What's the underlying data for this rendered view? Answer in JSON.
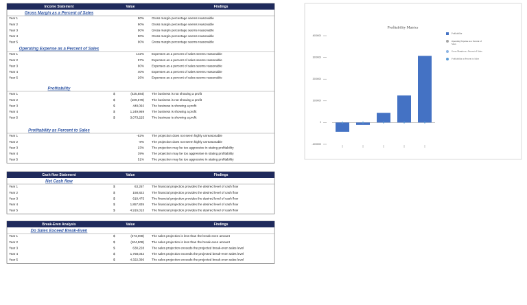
{
  "sections": [
    {
      "header": {
        "title": "Income Statement",
        "value": "Value",
        "findings": "Findings"
      },
      "groups": [
        {
          "title": "Gross Margin as a Percent of Sales",
          "rows": [
            {
              "label": "Year 1",
              "value": "90%",
              "finding": "Gross margin percentage seems reasonable"
            },
            {
              "label": "Year 2",
              "value": "90%",
              "finding": "Gross margin percentage seems reasonable"
            },
            {
              "label": "Year 3",
              "value": "90%",
              "finding": "Gross margin percentage seems reasonable"
            },
            {
              "label": "Year 4",
              "value": "90%",
              "finding": "Gross margin percentage seems reasonable"
            },
            {
              "label": "Year 5",
              "value": "90%",
              "finding": "Gross margin percentage seems reasonable"
            }
          ]
        },
        {
          "title": "Operating Expense as a Percent of Sales",
          "rows": [
            {
              "label": "Year 1",
              "value": "142%",
              "finding": "Expenses as a percent of sales seems reasonable"
            },
            {
              "label": "Year 2",
              "value": "97%",
              "finding": "Expenses as a percent of sales seems reasonable"
            },
            {
              "label": "Year 3",
              "value": "60%",
              "finding": "Expenses as a percent of sales seems reasonable"
            },
            {
              "label": "Year 4",
              "value": "40%",
              "finding": "Expenses as a percent of sales seems reasonable"
            },
            {
              "label": "Year 5",
              "value": "26%",
              "finding": "Expenses as a percent of sales seems reasonable"
            }
          ]
        },
        {
          "title": "Profitability",
          "rows": [
            {
              "label": "Year 1",
              "cur": "$",
              "value": "(425,884)",
              "finding": "The business is not showing a profit"
            },
            {
              "label": "Year 2",
              "cur": "$",
              "value": "(109,678)",
              "finding": "The business is not showing a profit"
            },
            {
              "label": "Year 3",
              "cur": "$",
              "value": "448,092",
              "finding": "The business is showing a profit"
            },
            {
              "label": "Year 4",
              "cur": "$",
              "value": "1,249,969",
              "finding": "The business is showing a profit"
            },
            {
              "label": "Year 5",
              "cur": "$",
              "value": "3,073,225",
              "finding": "The business is showing a profit"
            }
          ]
        },
        {
          "title": "Profitability as Percent to Sales",
          "rows": [
            {
              "label": "Year 1",
              "value": "-52%",
              "finding": "The projection does not seem highly unreasonable"
            },
            {
              "label": "Year 2",
              "value": "-8%",
              "finding": "The projection does not seem highly unreasonable"
            },
            {
              "label": "Year 3",
              "value": "23%",
              "finding": "The projection may be too aggressive in stating profitability"
            },
            {
              "label": "Year 4",
              "value": "39%",
              "finding": "The projection may be too aggressive in stating profitability"
            },
            {
              "label": "Year 5",
              "value": "51%",
              "finding": "The projection may be too aggressive in stating profitability"
            }
          ]
        }
      ]
    },
    {
      "header": {
        "title": "Cash flow Statement",
        "value": "Value",
        "findings": "Findings"
      },
      "groups": [
        {
          "title": "Net Cash flow",
          "rows": [
            {
              "label": "Year 1",
              "cur": "$",
              "value": "63,257",
              "finding": "The financial projection provides the desired level of cash flow"
            },
            {
              "label": "Year 2",
              "cur": "$",
              "value": "158,822",
              "finding": "The financial projection provides the desired level of cash flow"
            },
            {
              "label": "Year 3",
              "cur": "$",
              "value": "610,475",
              "finding": "The financial projection provides the desired level of cash flow"
            },
            {
              "label": "Year 4",
              "cur": "$",
              "value": "1,857,835",
              "finding": "The financial projection provides the desired level of cash flow"
            },
            {
              "label": "Year 5",
              "cur": "$",
              "value": "4,916,013",
              "finding": "The financial projection provides the desired level of cash flow"
            }
          ]
        }
      ]
    },
    {
      "header": {
        "title": "Break-Even Analysis",
        "value": "Value",
        "findings": "Findings"
      },
      "groups": [
        {
          "title": "Do Sales Exceed Break-Even",
          "rows": [
            {
              "label": "Year 1",
              "cur": "$",
              "value": "(473,008)",
              "finding": "The sales projection is less than the break-even amount"
            },
            {
              "label": "Year 2",
              "cur": "$",
              "value": "(104,508)",
              "finding": "The sales projection is less than the break-even amount"
            },
            {
              "label": "Year 3",
              "cur": "$",
              "value": "630,228",
              "finding": "The sales projection exceeds the projected break-even sales level"
            },
            {
              "label": "Year 4",
              "cur": "$",
              "value": "1,758,042",
              "finding": "The sales projection exceeds the projected break-even sales level"
            },
            {
              "label": "Year 5",
              "cur": "$",
              "value": "4,322,396",
              "finding": "The sales projection exceeds the projected break-even sales level"
            }
          ]
        }
      ]
    }
  ],
  "chart_data": {
    "type": "bar",
    "title": "Profitability Matrics",
    "categories": [
      null,
      null,
      null,
      null,
      null
    ],
    "series": [
      {
        "name": "Profitability",
        "color": "#4472c4",
        "values": [
          -425884,
          -109678,
          448092,
          1249969,
          3073225
        ]
      },
      {
        "name": "Operating Expense as a Percent of Sales",
        "color": "#a5a5a5",
        "values": [
          142,
          97,
          60,
          40,
          26
        ]
      },
      {
        "name": "Gross Margin as a Percent of Sales",
        "color": "#8db4e2",
        "values": [
          90,
          90,
          90,
          90,
          90
        ]
      },
      {
        "name": "Profitability as Percent to Sales",
        "color": "#5b9bd5",
        "values": [
          -52,
          -8,
          23,
          39,
          51
        ]
      }
    ],
    "ylim": [
      -1000000,
      4000000
    ],
    "yticks": [
      -1000000,
      0,
      1000000,
      2000000,
      3000000,
      4000000
    ],
    "legend": "right"
  }
}
